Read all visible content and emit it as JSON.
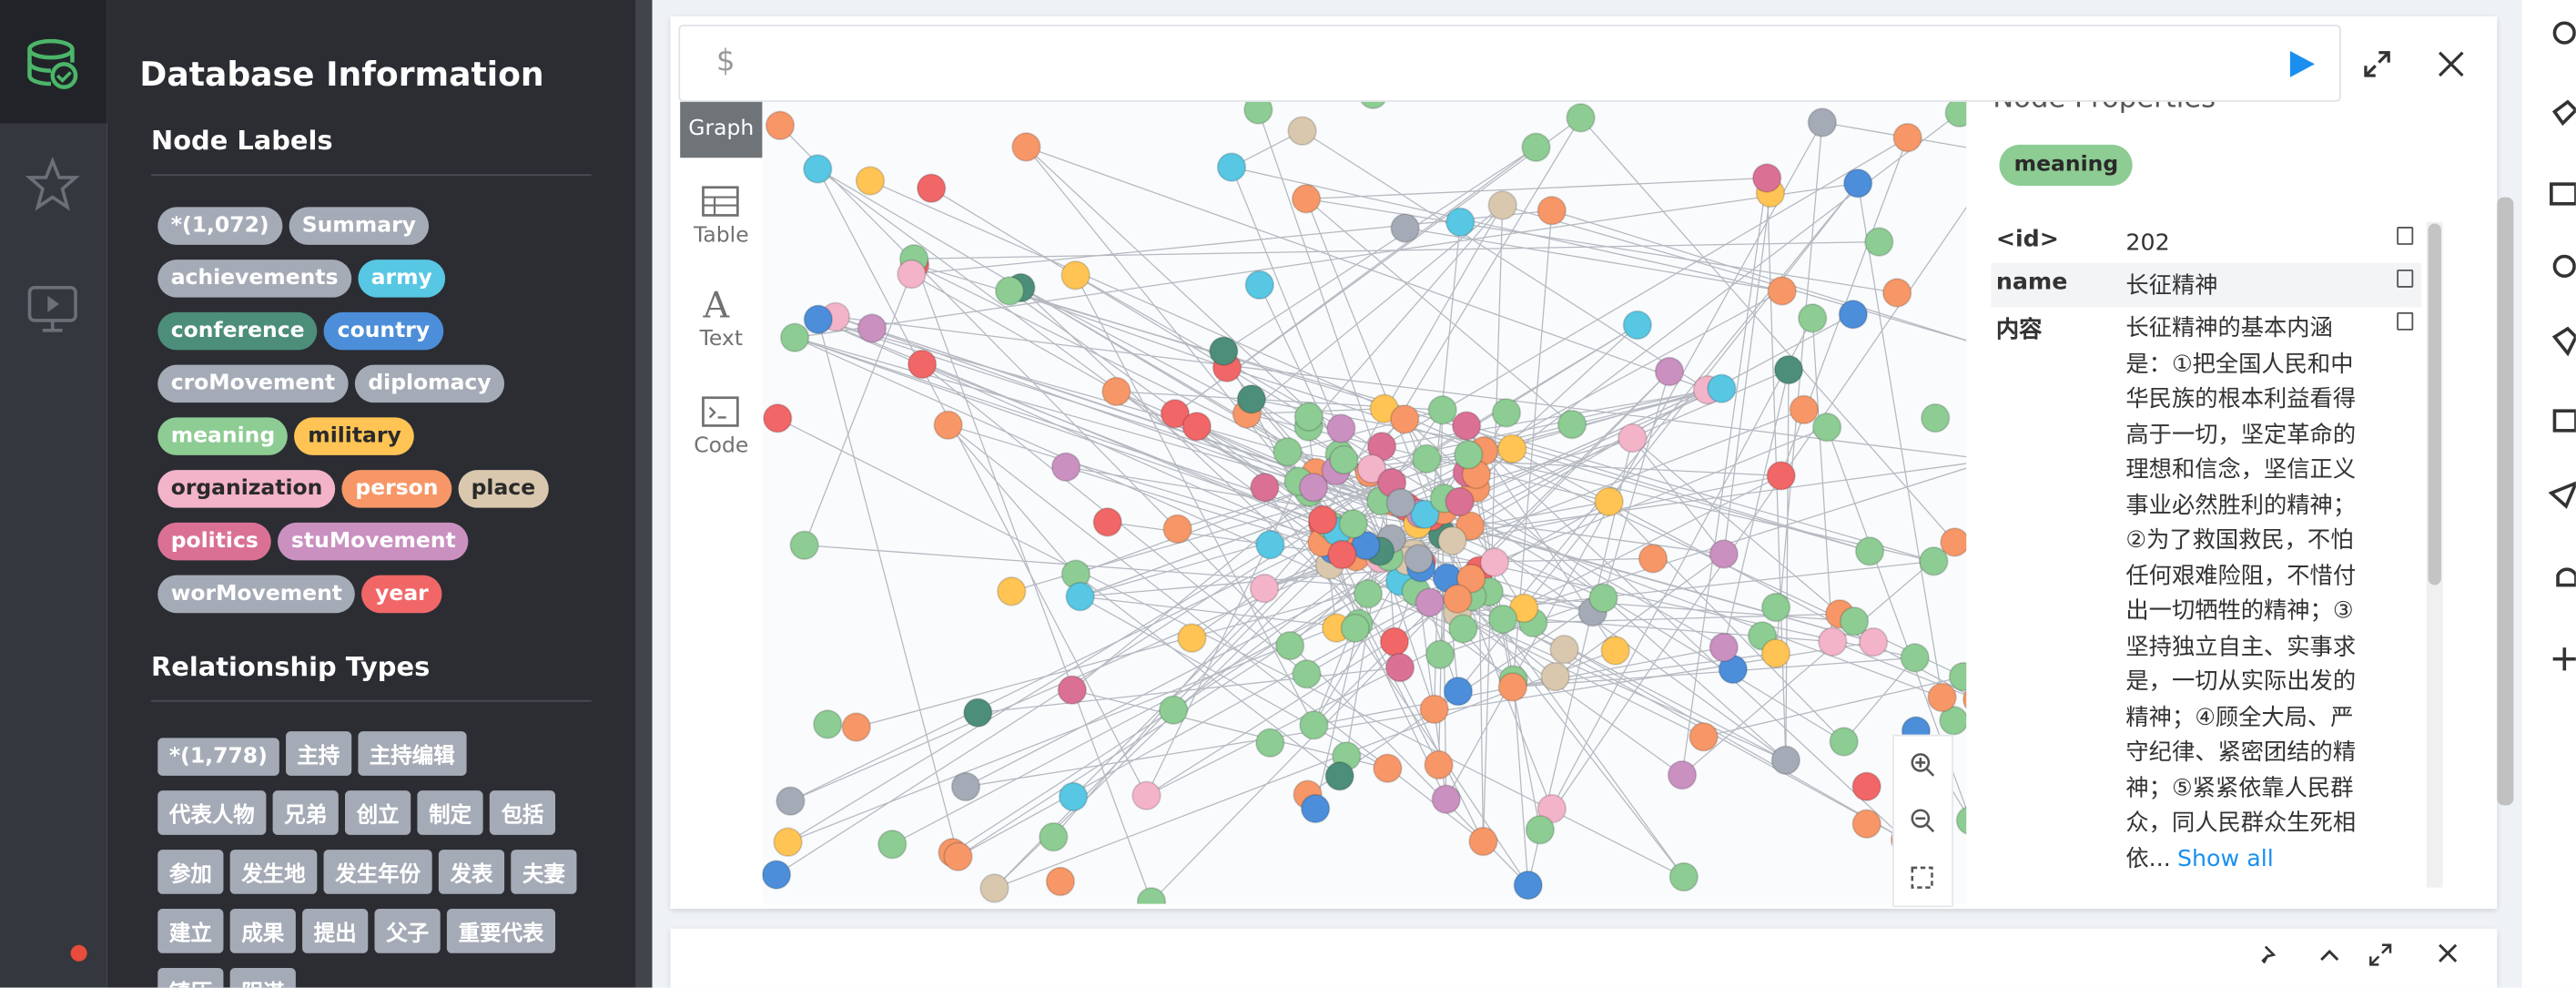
{
  "sidebar": {
    "title": "Database Information",
    "node_labels_heading": "Node Labels",
    "node_labels": [
      {
        "text": "*(1,072)",
        "color": "#a5abb6"
      },
      {
        "text": "Summary",
        "color": "#a5abb6"
      },
      {
        "text": "achievements",
        "color": "#a5abb6"
      },
      {
        "text": "army",
        "color": "#57c7e3"
      },
      {
        "text": "conference",
        "color": "#4c8e7a"
      },
      {
        "text": "country",
        "color": "#4c8eda"
      },
      {
        "text": "croMovement",
        "color": "#a5abb6"
      },
      {
        "text": "diplomacy",
        "color": "#a5abb6"
      },
      {
        "text": "meaning",
        "color": "#8dcc93"
      },
      {
        "text": "military",
        "color": "#ffc454"
      },
      {
        "text": "organization",
        "color": "#f3b3c9"
      },
      {
        "text": "person",
        "color": "#f79767"
      },
      {
        "text": "place",
        "color": "#d9c8ae"
      },
      {
        "text": "politics",
        "color": "#da7194"
      },
      {
        "text": "stuMovement",
        "color": "#c990c0"
      },
      {
        "text": "worMovement",
        "color": "#a5abb6"
      },
      {
        "text": "year",
        "color": "#f16667"
      }
    ],
    "relationship_heading": "Relationship Types",
    "relationship_types": [
      "*(1,778)",
      "主持",
      "主持编辑",
      "代表人物",
      "兄弟",
      "创立",
      "制定",
      "包括",
      "参加",
      "发生地",
      "发生年份",
      "发表",
      "夫妻",
      "建立",
      "成果",
      "提出",
      "父子",
      "重要代表",
      "镇压",
      "阴谋"
    ]
  },
  "editor": {
    "prompt": "$"
  },
  "view_tabs": [
    "Graph",
    "Table",
    "Text",
    "Code"
  ],
  "properties": {
    "heading": "Node Properties",
    "label": "meaning",
    "rows": [
      {
        "key": "<id>",
        "value": "202"
      },
      {
        "key": "name",
        "value": "长征精神"
      },
      {
        "key": "内容",
        "value": "长征精神的基本内涵是：①把全国人民和中华民族的根本利益看得高于一切，坚定革命的理想和信念，坚信正义事业必然胜利的精神；②为了救国救民，不怕任何艰难险阻，不惜付出一切牺牲的精神；③坚持独立自主、实事求是，一切从实际出发的精神；④顾全大局、严守纪律、紧密团结的精神；⑤紧紧依靠人民群众，同人民群众生死相依..."
      }
    ],
    "show_all": "Show all"
  }
}
